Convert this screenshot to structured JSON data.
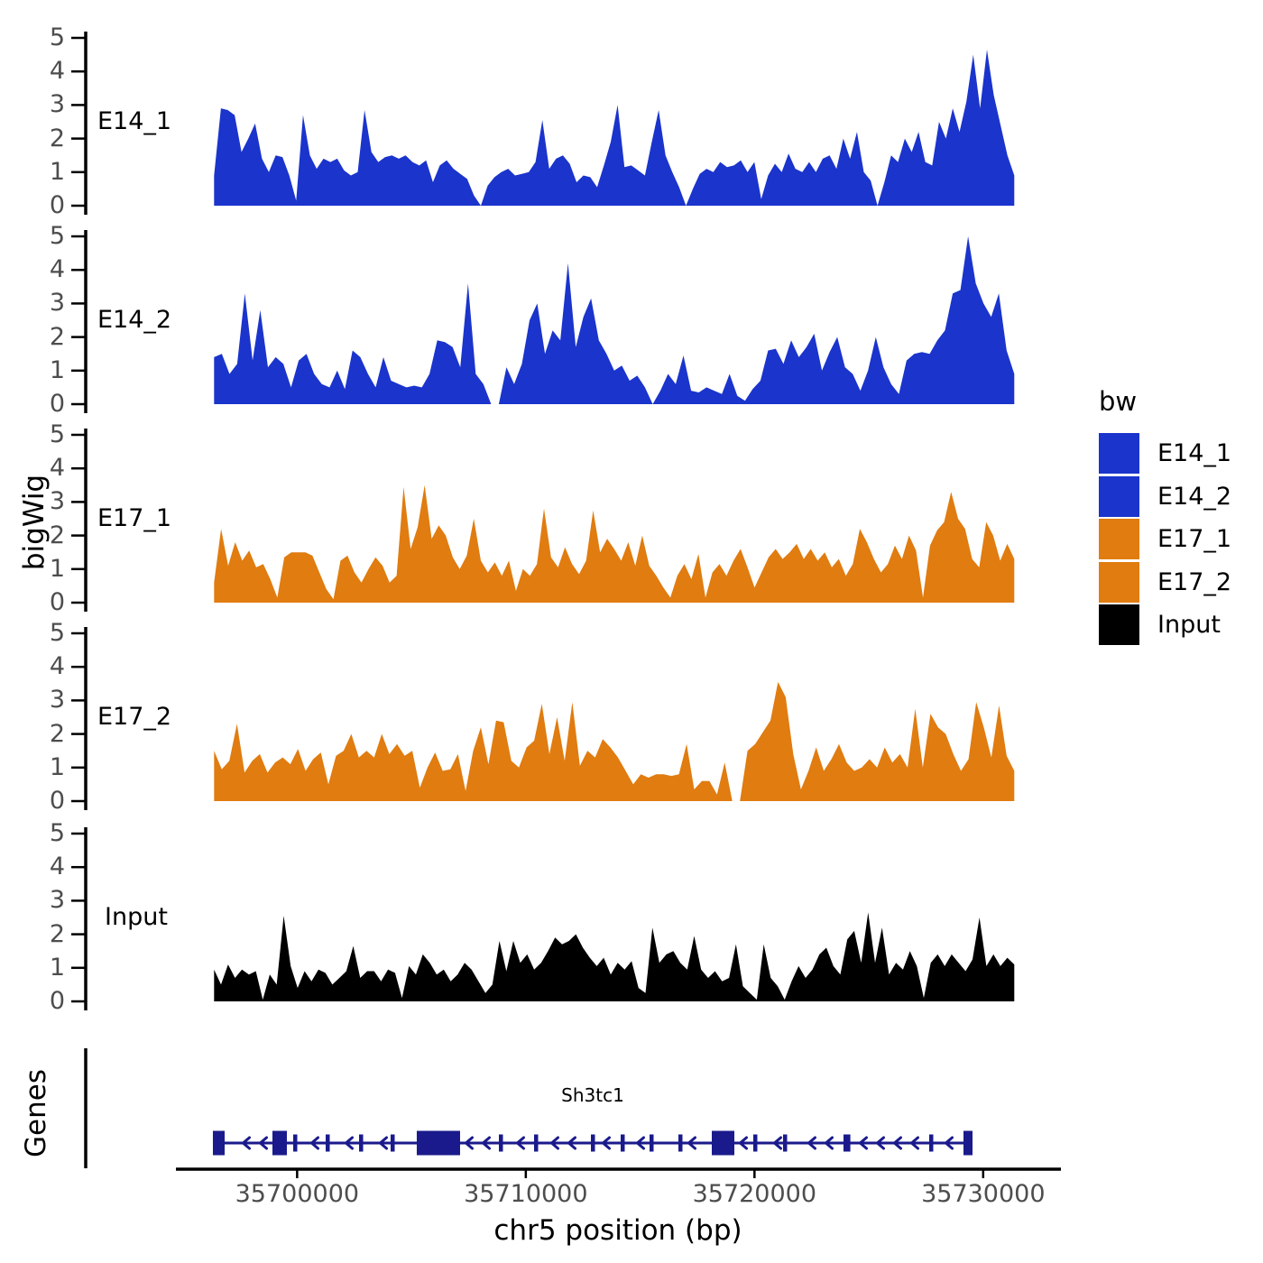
{
  "chart_data": {
    "type": "area",
    "title": "",
    "ylabel": "bigWig",
    "xlabel": "chr5 position (bp)",
    "x_domain": [
      35694700,
      35733400
    ],
    "x_ticks": [
      {
        "value": 35700000,
        "label": "35700000"
      },
      {
        "value": 35710000,
        "label": "35710000"
      },
      {
        "value": 35720000,
        "label": "35720000"
      },
      {
        "value": 35730000,
        "label": "35730000"
      }
    ],
    "y_ticks": [
      0,
      1,
      2,
      3,
      4,
      5
    ],
    "ylim": [
      0,
      5.2
    ],
    "signal_x_start": 35696370,
    "signal_x_end": 35731360,
    "legend": {
      "title": "bw",
      "entries": [
        {
          "label": "E14_1",
          "color": "#1A34CC"
        },
        {
          "label": "E14_2",
          "color": "#1A34CC"
        },
        {
          "label": "E17_1",
          "color": "#E07C10"
        },
        {
          "label": "E17_2",
          "color": "#E07C10"
        },
        {
          "label": "Input",
          "color": "#000000"
        }
      ]
    },
    "tracks": [
      {
        "name": "E14_1",
        "color": "#1A34CC",
        "values": [
          0.9,
          2.9,
          2.85,
          2.7,
          1.6,
          2.0,
          2.45,
          1.4,
          1.0,
          1.5,
          1.45,
          0.9,
          0.15,
          2.7,
          1.5,
          1.1,
          1.4,
          1.3,
          1.4,
          1.05,
          0.9,
          1.0,
          2.85,
          1.6,
          1.3,
          1.45,
          1.5,
          1.4,
          1.5,
          1.3,
          1.2,
          1.35,
          0.7,
          1.2,
          1.35,
          1.1,
          0.95,
          0.8,
          0.3,
          0.0,
          0.6,
          0.85,
          1.0,
          1.1,
          0.9,
          0.95,
          1.0,
          1.3,
          2.55,
          1.1,
          1.4,
          1.5,
          1.25,
          0.7,
          0.9,
          0.85,
          0.55,
          1.2,
          1.9,
          3.0,
          1.15,
          1.2,
          1.05,
          0.9,
          1.9,
          2.85,
          1.5,
          1.0,
          0.55,
          0.0,
          0.5,
          0.95,
          1.1,
          1.0,
          1.3,
          1.15,
          1.2,
          1.35,
          1.0,
          1.3,
          0.2,
          0.9,
          1.25,
          1.0,
          1.55,
          1.1,
          1.0,
          1.3,
          1.0,
          1.4,
          1.5,
          1.1,
          2.0,
          1.4,
          2.2,
          1.0,
          0.75,
          0.0,
          0.7,
          1.5,
          1.3,
          2.0,
          1.6,
          2.2,
          1.3,
          1.2,
          2.5,
          2.0,
          2.9,
          2.2,
          3.1,
          4.5,
          2.9,
          4.65,
          3.3,
          2.4,
          1.5,
          0.9
        ]
      },
      {
        "name": "E14_2",
        "color": "#1A34CC",
        "values": [
          1.4,
          1.5,
          0.9,
          1.2,
          3.3,
          1.3,
          2.8,
          1.1,
          1.4,
          1.2,
          0.5,
          1.3,
          1.5,
          0.9,
          0.6,
          0.5,
          1.0,
          0.45,
          1.6,
          1.4,
          0.9,
          0.5,
          1.4,
          0.7,
          0.6,
          0.5,
          0.55,
          0.5,
          0.9,
          1.9,
          1.85,
          1.7,
          1.1,
          3.6,
          0.9,
          0.6,
          0.0,
          0.0,
          1.1,
          0.6,
          1.2,
          2.5,
          3.0,
          1.5,
          2.2,
          1.9,
          4.2,
          1.7,
          2.6,
          3.15,
          1.9,
          1.5,
          1.0,
          1.15,
          0.7,
          0.85,
          0.5,
          0.0,
          0.4,
          0.9,
          0.6,
          1.45,
          0.4,
          0.35,
          0.5,
          0.4,
          0.3,
          0.9,
          0.25,
          0.1,
          0.45,
          0.7,
          1.6,
          1.65,
          1.2,
          1.9,
          1.4,
          1.7,
          2.1,
          1.0,
          1.55,
          2.0,
          1.1,
          0.9,
          0.4,
          1.0,
          2.0,
          1.1,
          0.6,
          0.3,
          1.3,
          1.5,
          1.55,
          1.5,
          1.9,
          2.2,
          3.3,
          3.4,
          5.0,
          3.6,
          3.0,
          2.6,
          3.3,
          1.6,
          0.9
        ]
      },
      {
        "name": "E17_1",
        "color": "#E07C10",
        "values": [
          0.6,
          2.2,
          1.1,
          1.8,
          1.25,
          1.55,
          1.05,
          1.15,
          0.7,
          0.15,
          1.35,
          1.5,
          1.5,
          1.5,
          1.4,
          0.9,
          0.4,
          0.1,
          1.25,
          1.4,
          0.9,
          0.6,
          1.0,
          1.35,
          1.1,
          0.6,
          0.8,
          3.45,
          1.6,
          2.25,
          3.5,
          1.9,
          2.3,
          2.0,
          1.35,
          1.0,
          1.4,
          2.5,
          1.25,
          0.9,
          1.2,
          0.8,
          1.25,
          0.35,
          1.0,
          0.8,
          1.15,
          2.8,
          1.35,
          1.05,
          1.65,
          1.15,
          0.85,
          1.25,
          2.75,
          1.5,
          1.9,
          1.6,
          1.25,
          1.8,
          1.1,
          2.0,
          1.1,
          0.8,
          0.45,
          0.15,
          0.8,
          1.15,
          0.7,
          1.45,
          0.15,
          0.9,
          1.15,
          0.8,
          1.25,
          1.6,
          1.05,
          0.45,
          0.9,
          1.35,
          1.6,
          1.3,
          1.5,
          1.75,
          1.3,
          1.6,
          1.25,
          1.5,
          1.05,
          1.3,
          0.8,
          1.15,
          2.2,
          1.8,
          1.3,
          0.9,
          1.15,
          1.7,
          1.3,
          2.0,
          1.55,
          0.15,
          1.7,
          2.15,
          2.4,
          3.3,
          2.5,
          2.2,
          1.3,
          1.05,
          2.4,
          2.0,
          1.25,
          1.75,
          1.3
        ]
      },
      {
        "name": "E17_2",
        "color": "#E07C10",
        "values": [
          1.5,
          0.95,
          1.2,
          2.3,
          0.85,
          1.2,
          1.4,
          0.85,
          1.15,
          1.3,
          1.1,
          1.55,
          0.9,
          1.25,
          1.45,
          0.5,
          1.35,
          1.5,
          2.0,
          1.3,
          1.5,
          1.3,
          2.0,
          1.4,
          1.7,
          1.35,
          1.5,
          0.4,
          1.0,
          1.45,
          0.9,
          0.95,
          1.4,
          0.3,
          1.5,
          2.2,
          1.1,
          2.4,
          2.35,
          1.2,
          1.0,
          1.6,
          1.8,
          2.9,
          1.4,
          2.5,
          1.2,
          2.95,
          1.05,
          1.5,
          1.3,
          1.85,
          1.6,
          1.3,
          0.9,
          0.5,
          0.8,
          0.7,
          0.8,
          0.8,
          0.75,
          0.8,
          1.7,
          0.35,
          0.6,
          0.6,
          0.2,
          1.15,
          0.0,
          0.0,
          1.5,
          1.7,
          2.05,
          2.4,
          3.55,
          3.1,
          1.4,
          0.35,
          0.9,
          1.6,
          0.9,
          1.25,
          1.7,
          1.15,
          0.9,
          1.0,
          1.25,
          1.0,
          1.6,
          1.15,
          1.4,
          1.0,
          2.75,
          1.0,
          2.6,
          2.2,
          2.0,
          1.4,
          0.9,
          1.25,
          2.95,
          2.2,
          1.3,
          2.85,
          1.35,
          0.9
        ]
      },
      {
        "name": "Input",
        "color": "#000000",
        "values": [
          0.95,
          0.5,
          1.1,
          0.7,
          0.95,
          0.8,
          0.9,
          0.05,
          0.8,
          0.5,
          2.55,
          1.05,
          0.4,
          0.9,
          0.6,
          0.95,
          0.85,
          0.5,
          0.7,
          0.9,
          1.65,
          0.7,
          0.9,
          0.9,
          0.6,
          0.95,
          0.85,
          0.1,
          1.05,
          0.8,
          1.4,
          1.15,
          0.8,
          0.95,
          0.6,
          0.8,
          1.15,
          0.95,
          0.6,
          0.25,
          0.5,
          1.8,
          0.9,
          1.8,
          1.15,
          1.4,
          0.95,
          1.15,
          1.5,
          1.9,
          1.7,
          1.8,
          2.0,
          1.6,
          1.3,
          1.05,
          1.3,
          0.8,
          1.15,
          0.95,
          1.2,
          0.4,
          0.25,
          2.2,
          1.15,
          1.4,
          1.5,
          1.15,
          0.95,
          1.95,
          0.95,
          0.7,
          0.9,
          0.6,
          0.7,
          1.7,
          0.45,
          0.25,
          0.05,
          1.7,
          0.7,
          0.45,
          0.05,
          0.6,
          1.05,
          0.7,
          0.95,
          1.4,
          1.6,
          1.05,
          0.8,
          1.85,
          2.1,
          1.15,
          2.65,
          1.15,
          2.2,
          0.8,
          1.15,
          0.95,
          1.5,
          1.05,
          0.1,
          1.15,
          1.4,
          1.05,
          1.4,
          1.15,
          0.9,
          1.25,
          2.5,
          1.05,
          1.4,
          1.05,
          1.3,
          1.1
        ]
      }
    ],
    "genes": {
      "panel_label": "Genes",
      "gene": {
        "name": "Sh3tc1",
        "strand": "-",
        "color": "#1A1A8C",
        "start": 35696317,
        "end": 35729534,
        "exons": [
          [
            35696317,
            35696830
          ],
          [
            35698921,
            35699552
          ],
          [
            35699829,
            35699989
          ],
          [
            35701249,
            35701409
          ],
          [
            35702709,
            35702869
          ],
          [
            35704089,
            35704249
          ],
          [
            35705232,
            35707126
          ],
          [
            35708823,
            35708983
          ],
          [
            35710361,
            35710521
          ],
          [
            35712847,
            35713007
          ],
          [
            35714148,
            35714308
          ],
          [
            35715411,
            35715571
          ],
          [
            35716673,
            35716833
          ],
          [
            35718133,
            35719119
          ],
          [
            35719947,
            35720107
          ],
          [
            35721249,
            35721409
          ],
          [
            35723892,
            35724192
          ],
          [
            35727640,
            35727800
          ],
          [
            35729139,
            35729534
          ]
        ]
      }
    },
    "style": {
      "tick_label_color": "#4D4D4D",
      "axis_color": "#000000"
    }
  }
}
